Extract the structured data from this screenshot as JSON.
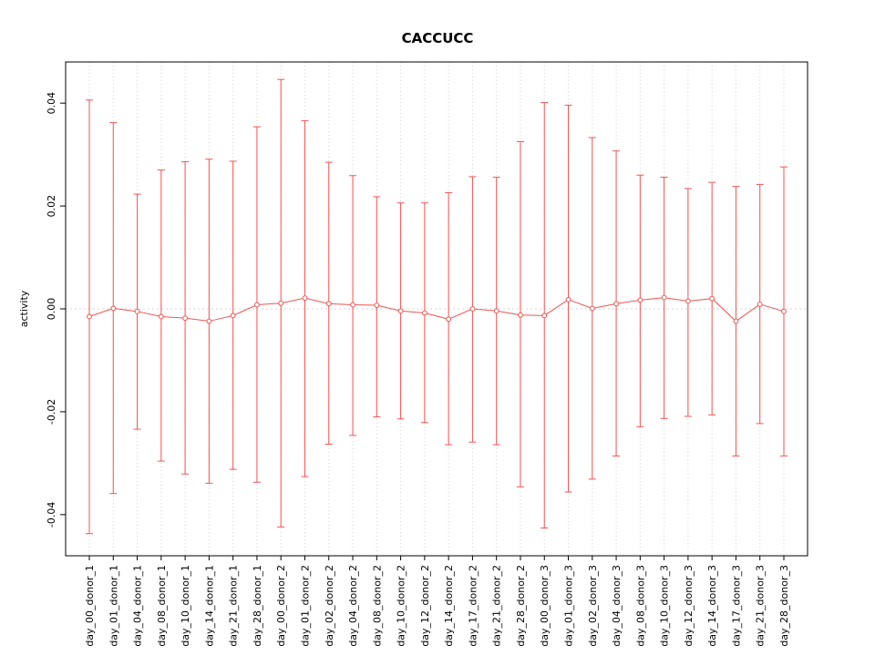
{
  "chart_data": {
    "type": "line",
    "title": "CACCUCC",
    "xlabel": "",
    "ylabel": "activity",
    "ylim": [
      -0.048,
      0.048
    ],
    "yticks": [
      -0.04,
      -0.02,
      0.0,
      0.02,
      0.04
    ],
    "grid": true,
    "legend": "none",
    "series_color": "#ee5555",
    "grid_color": "#d4d4d4",
    "axis_color": "#000000",
    "categories": [
      "day_00_donor_1",
      "day_01_donor_1",
      "day_04_donor_1",
      "day_08_donor_1",
      "day_10_donor_1",
      "day_14_donor_1",
      "day_21_donor_1",
      "day_28_donor_1",
      "day_00_donor_2",
      "day_01_donor_2",
      "day_02_donor_2",
      "day_04_donor_2",
      "day_08_donor_2",
      "day_10_donor_2",
      "day_12_donor_2",
      "day_14_donor_2",
      "day_17_donor_2",
      "day_21_donor_2",
      "day_28_donor_2",
      "day_00_donor_3",
      "day_01_donor_3",
      "day_02_donor_3",
      "day_04_donor_3",
      "day_08_donor_3",
      "day_10_donor_3",
      "day_12_donor_3",
      "day_14_donor_3",
      "day_17_donor_3",
      "day_21_donor_3",
      "day_28_donor_3"
    ],
    "series": [
      {
        "name": "activity_mean",
        "values": [
          -0.0015,
          0.0001,
          -0.0005,
          -0.0015,
          -0.0018,
          -0.0024,
          -0.0013,
          0.0008,
          0.0011,
          0.0021,
          0.001,
          0.0008,
          0.0007,
          -0.0004,
          -0.0008,
          -0.002,
          0.0,
          -0.0004,
          -0.0012,
          -0.0013,
          0.0018,
          0.0001,
          0.001,
          0.0017,
          0.0022,
          0.0015,
          0.002,
          -0.0024,
          0.0009,
          -0.0005
        ]
      },
      {
        "name": "upper_error",
        "values": [
          0.0406,
          0.0362,
          0.0223,
          0.027,
          0.0286,
          0.0291,
          0.0287,
          0.0354,
          0.0446,
          0.0366,
          0.0285,
          0.0259,
          0.0218,
          0.0206,
          0.0206,
          0.0226,
          0.0257,
          0.0256,
          0.0325,
          0.0401,
          0.0396,
          0.0333,
          0.0307,
          0.026,
          0.0256,
          0.0234,
          0.0246,
          0.0238,
          0.0242,
          0.0276
        ]
      },
      {
        "name": "lower_error",
        "values": [
          -0.0437,
          -0.0359,
          -0.0234,
          -0.0296,
          -0.0321,
          -0.0339,
          -0.0312,
          -0.0337,
          -0.0424,
          -0.0326,
          -0.0263,
          -0.0246,
          -0.021,
          -0.0214,
          -0.0221,
          -0.0264,
          -0.0259,
          -0.0264,
          -0.0346,
          -0.0426,
          -0.0356,
          -0.0331,
          -0.0286,
          -0.0229,
          -0.0213,
          -0.0209,
          -0.0206,
          -0.0286,
          -0.0223,
          -0.0286
        ]
      }
    ]
  }
}
